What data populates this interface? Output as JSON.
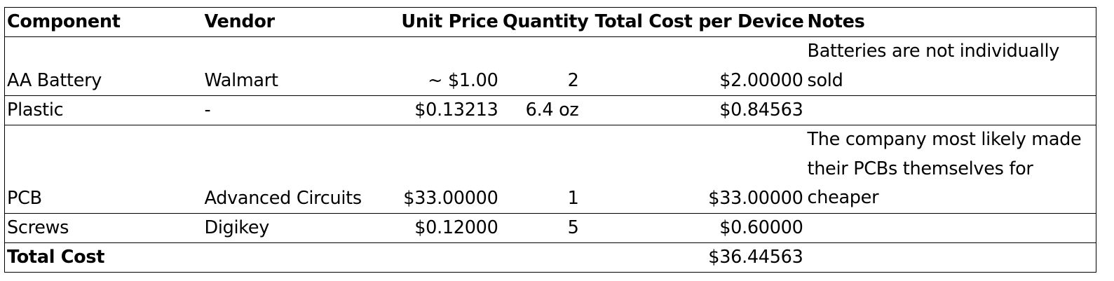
{
  "table": {
    "headers": {
      "component": "Component",
      "vendor": "Vendor",
      "unit_price": "Unit Price",
      "quantity": "Quantity",
      "total_cost": "Total Cost per Device",
      "notes": "Notes"
    },
    "rows": [
      {
        "component": "AA Battery",
        "vendor": "Walmart",
        "unit_price": "~ $1.00",
        "quantity": "2",
        "total_cost": "$2.00000",
        "notes": "Batteries are not individually sold"
      },
      {
        "component": "Plastic",
        "vendor": "-",
        "unit_price": "$0.13213",
        "quantity": "6.4 oz",
        "total_cost": "$0.84563",
        "notes": ""
      },
      {
        "component": "PCB",
        "vendor": "Advanced Circuits",
        "unit_price": "$33.00000",
        "quantity": "1",
        "total_cost": "$33.00000",
        "notes": "The company most likely made their PCBs themselves for cheaper"
      },
      {
        "component": "Screws",
        "vendor": "Digikey",
        "unit_price": "$0.12000",
        "quantity": "5",
        "total_cost": "$0.60000",
        "notes": ""
      }
    ],
    "total": {
      "label": "Total Cost",
      "value": "$36.44563"
    }
  }
}
